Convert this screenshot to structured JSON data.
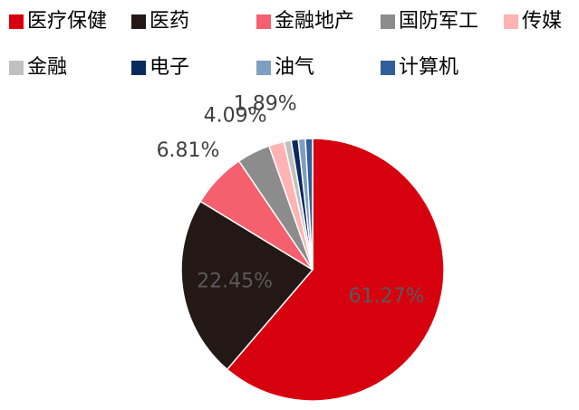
{
  "chart_data": {
    "type": "pie",
    "categories": [
      "医疗保健",
      "医药",
      "金融地产",
      "国防军工",
      "传媒",
      "金融",
      "电子",
      "油气",
      "计算机"
    ],
    "values": [
      61.27,
      22.45,
      6.81,
      4.09,
      1.89,
      0.87,
      0.87,
      0.87,
      0.88
    ],
    "value_labels": [
      "61.27%",
      "22.45%",
      "6.81%",
      "4.09%",
      "1.89%",
      null,
      null,
      null,
      null
    ],
    "colors": [
      "#d7000f",
      "#231815",
      "#f5606e",
      "#8c8c8c",
      "#ffb3b3",
      "#c0c0c0",
      "#0a2a5e",
      "#7f9fc0",
      "#2e5f9b"
    ]
  }
}
